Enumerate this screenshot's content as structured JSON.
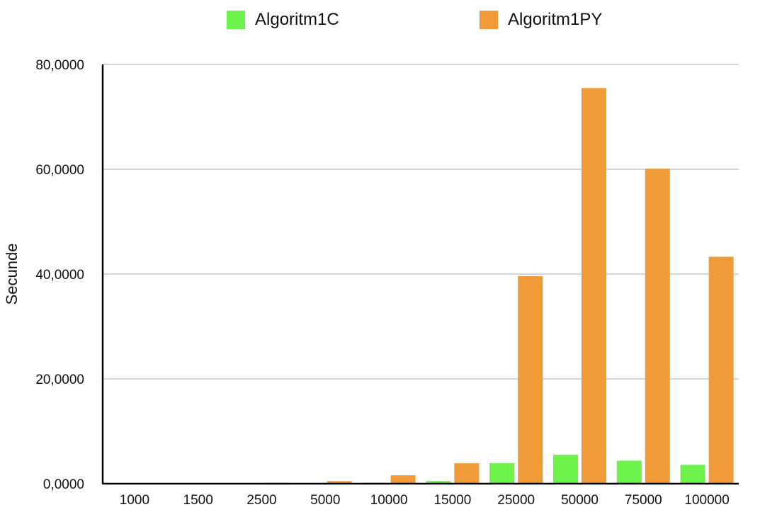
{
  "chart_data": {
    "type": "bar",
    "categories": [
      "1000",
      "1500",
      "2500",
      "5000",
      "10000",
      "15000",
      "25000",
      "50000",
      "75000",
      "100000"
    ],
    "series": [
      {
        "name": "Algoritm1C",
        "color": "#6cf24a",
        "values": [
          0.02,
          0.03,
          0.05,
          0.1,
          0.2,
          0.5,
          3.9,
          5.5,
          4.4,
          3.6
        ]
      },
      {
        "name": "Algoritm1PY",
        "color": "#f09a3a",
        "values": [
          0.05,
          0.08,
          0.15,
          0.5,
          1.6,
          3.9,
          39.6,
          75.5,
          60.1,
          43.3
        ]
      }
    ],
    "ylabel": "Secunde",
    "ylim": [
      0,
      80
    ],
    "yticks": [
      0,
      20,
      40,
      60,
      80
    ],
    "ytick_labels": [
      "0,0000",
      "20,0000",
      "40,0000",
      "60,0000",
      "80,0000"
    ],
    "grid": true,
    "legend_position": "top"
  }
}
